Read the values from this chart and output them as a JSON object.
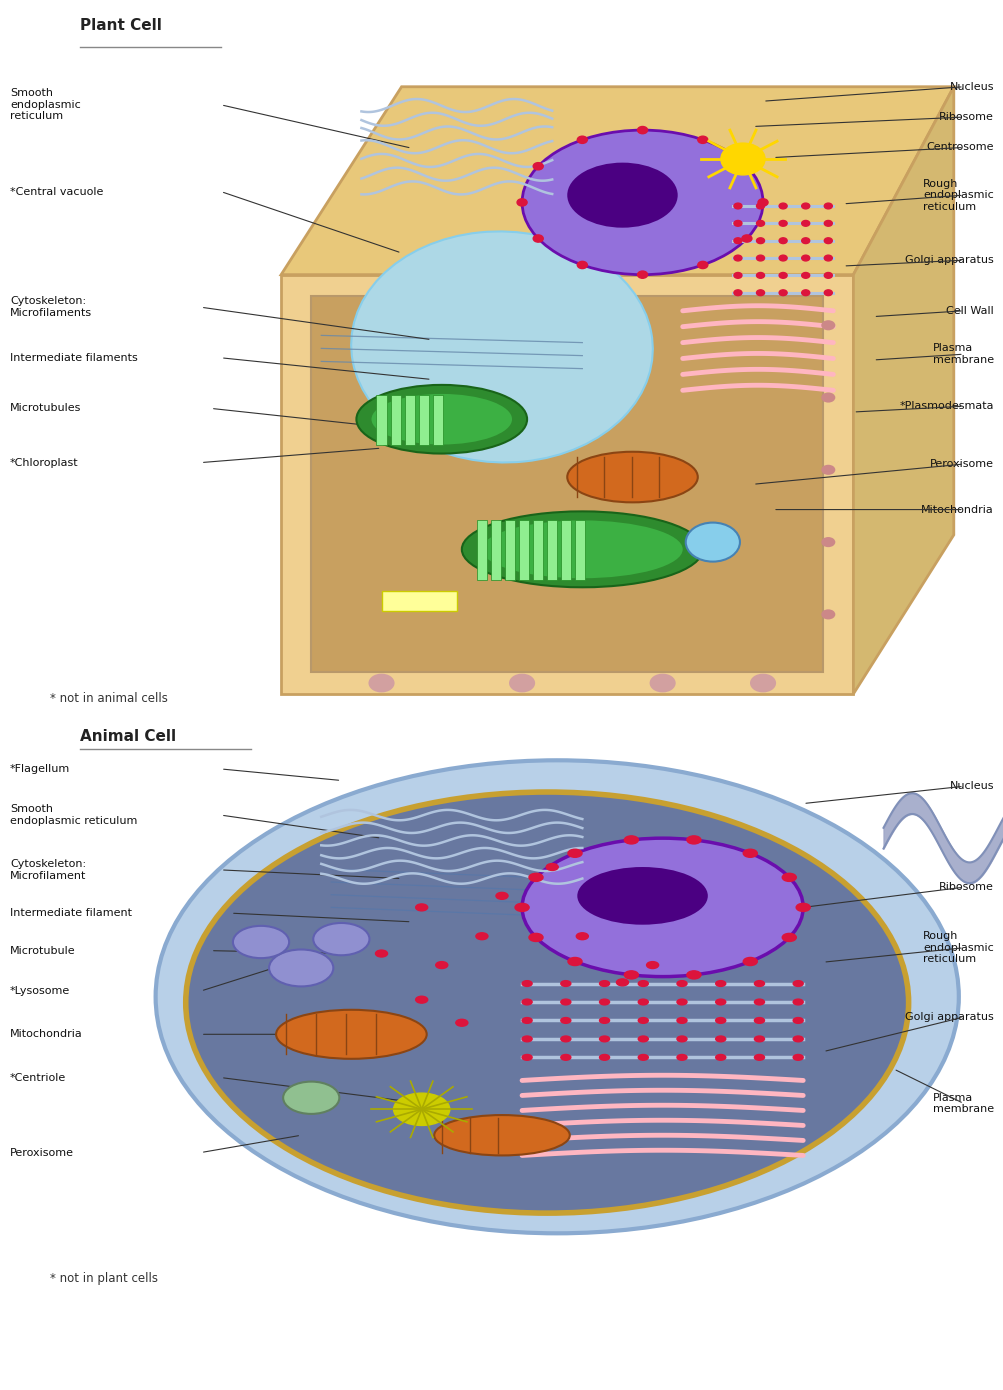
{
  "background_color": "#ffffff",
  "title_plant": "Plant Cell",
  "title_animal": "Animal Cell",
  "note_plant": "* not in animal cells",
  "note_animal": "* not in plant cells",
  "colors": {
    "cell_wall_outer": "#E8C87A",
    "cell_wall_inner": "#D4A84B",
    "cell_wall_fill": "#F0D090",
    "cytoplasm": "#C8A060",
    "vacuole": "#ADD8E6",
    "nucleus_outer": "#9370DB",
    "nucleus_inner": "#6A0DAD",
    "nucleolus": "#4B0082",
    "er_smooth": "#B0C4DE",
    "er_rough": "#B0C4DE",
    "golgi": "#FFB6C1",
    "chloroplast_outer": "#228B22",
    "chloroplast_inner": "#90EE90",
    "mitochondria": "#D2691E",
    "centrosome": "#FFD700",
    "ribosome": "#DC143C",
    "animal_cell_outer": "#B0C8E8",
    "animal_cytoplasm": "#7888A8",
    "lysosome": "#9090D0",
    "centriole": "#CCCC00",
    "peroxisome": "#90C090",
    "label_color": "#111111",
    "line_color": "#333333"
  }
}
